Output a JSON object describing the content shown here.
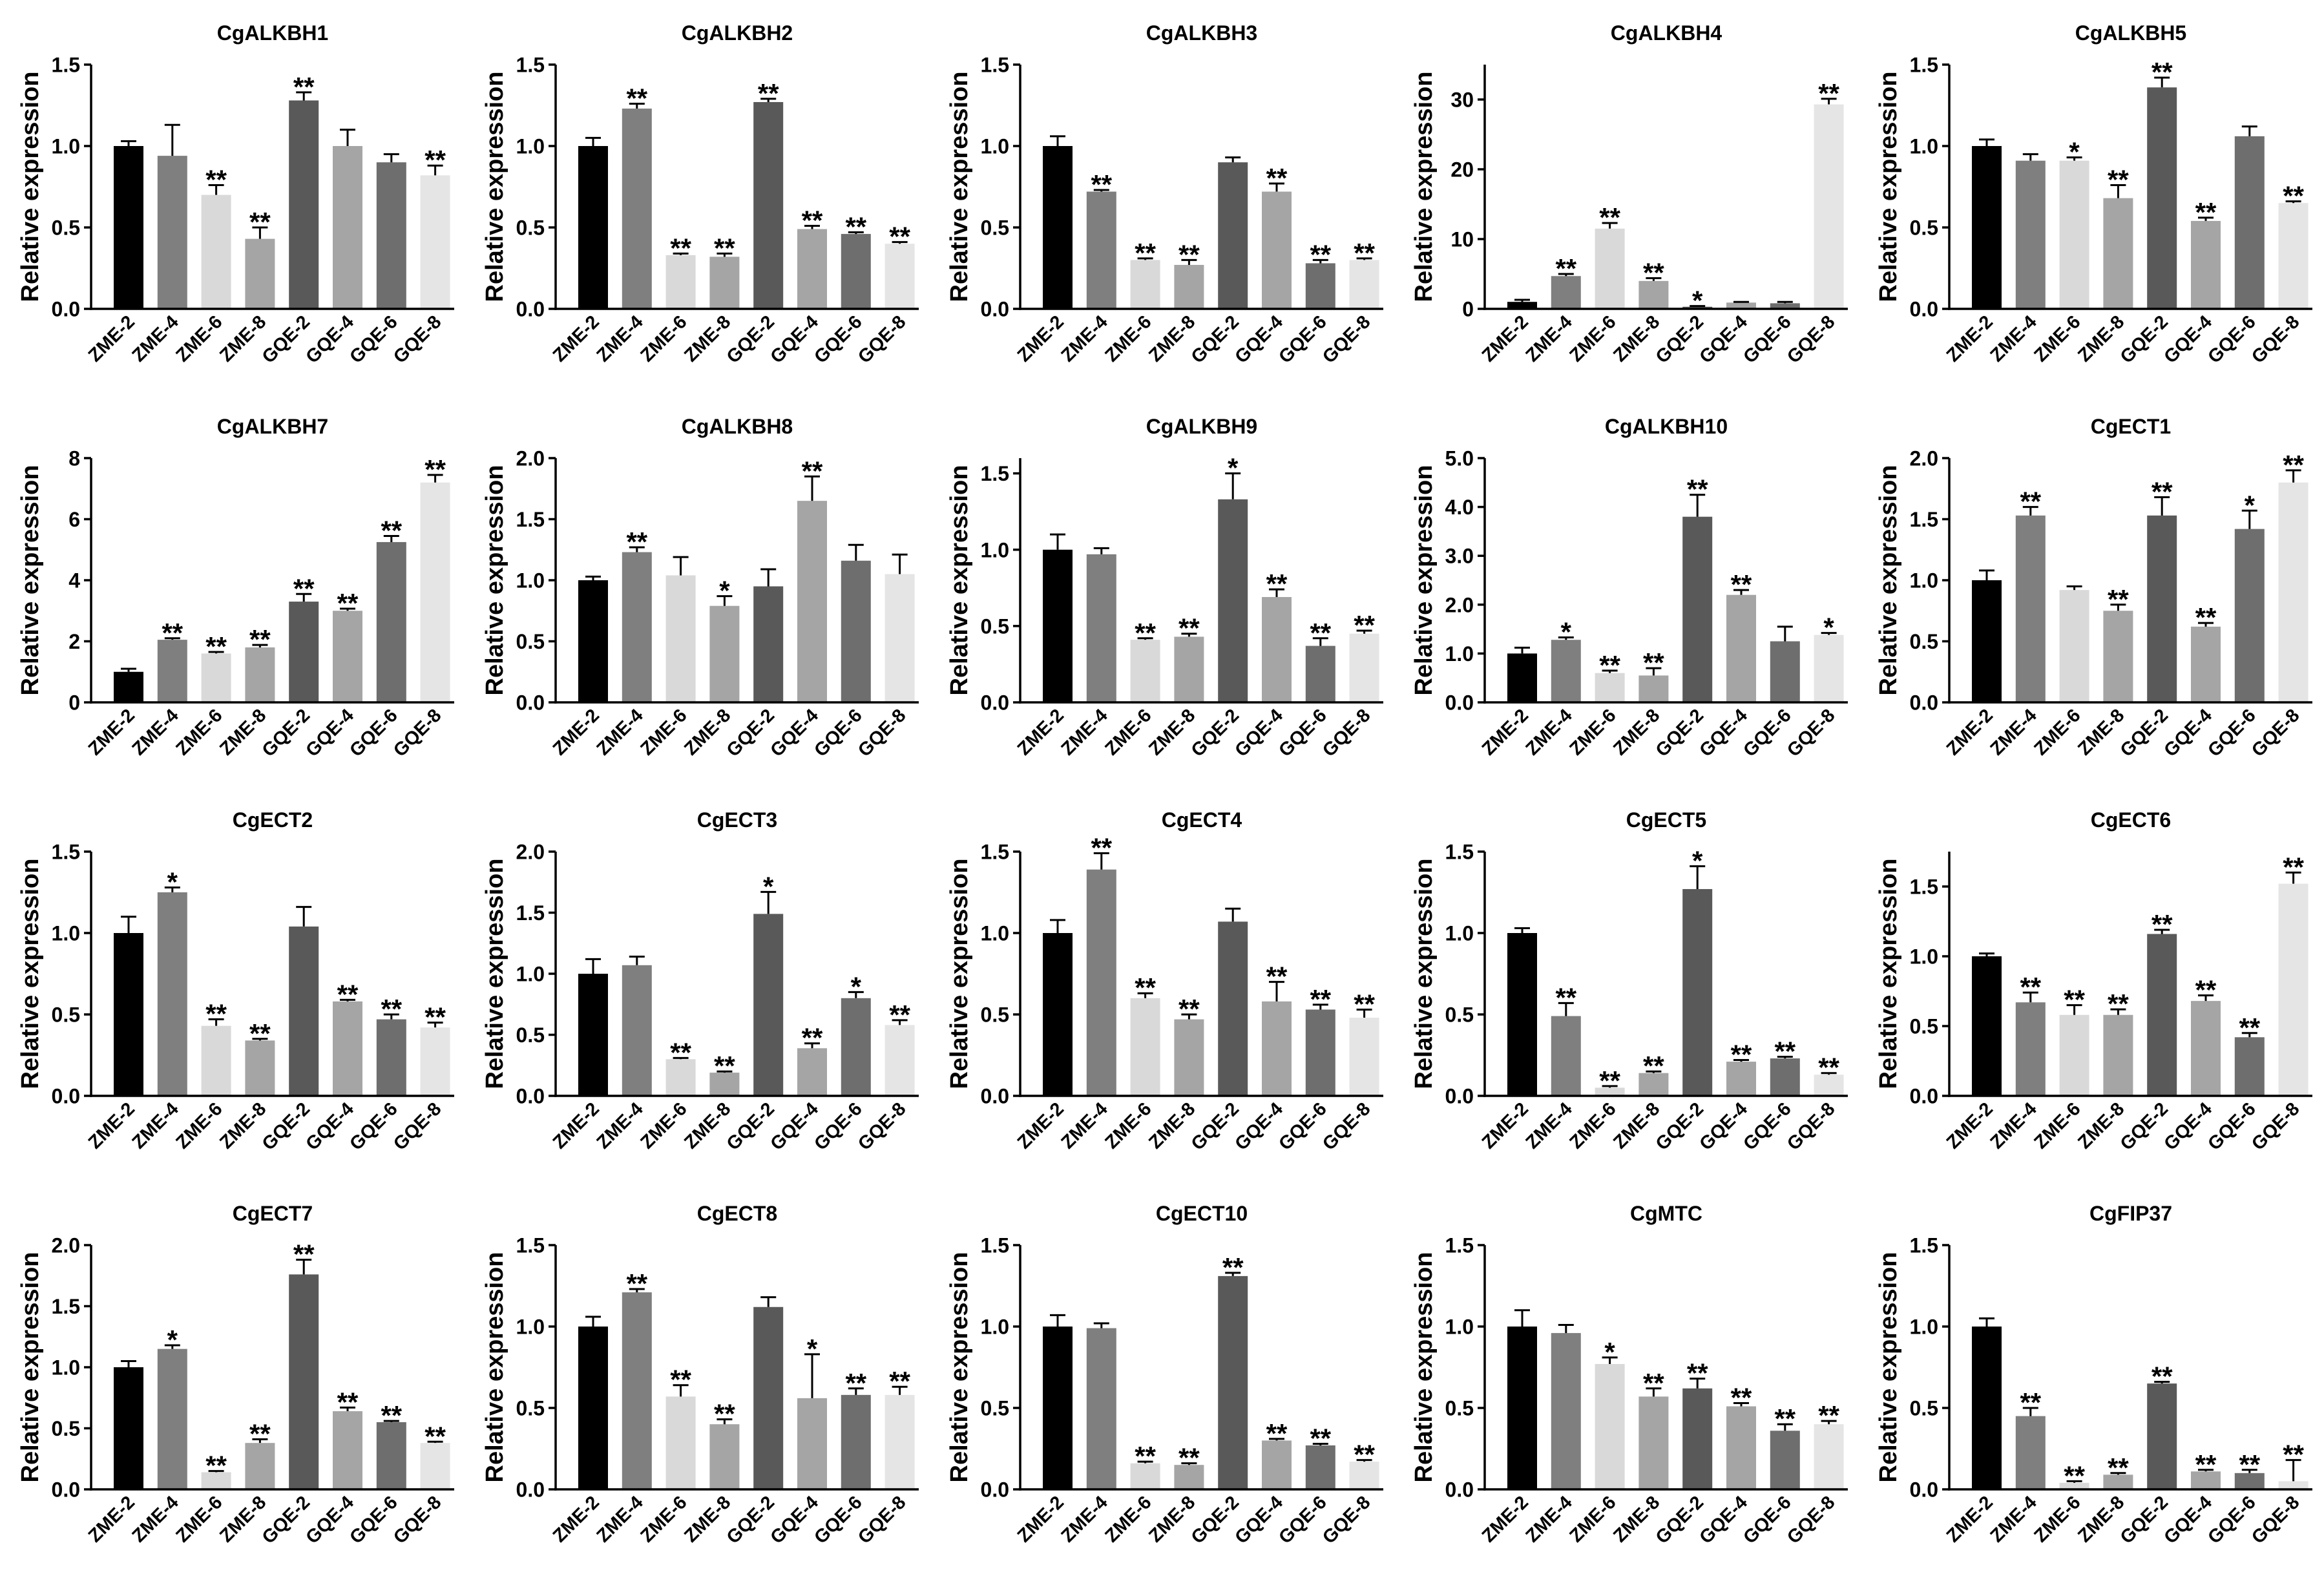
{
  "colors": {
    "bars": [
      "#000000",
      "#7f7f7f",
      "#d9d9d9",
      "#a5a5a5",
      "#595959",
      "#a5a5a5",
      "#6e6e6e",
      "#e5e5e5"
    ],
    "error_bar": "#000000",
    "axis": "#000000",
    "text": "#000000",
    "background": "#ffffff"
  },
  "chart_data": [
    {
      "type": "bar",
      "title": "CgALKBH1",
      "ylabel": "Relative expression",
      "categories": [
        "ZME-2",
        "ZME-4",
        "ZME-6",
        "ZME-8",
        "GQE-2",
        "GQE-4",
        "GQE-6",
        "GQE-8"
      ],
      "values": [
        1.0,
        0.94,
        0.7,
        0.43,
        1.28,
        1.0,
        0.9,
        0.82
      ],
      "errors": [
        0.03,
        0.19,
        0.06,
        0.07,
        0.05,
        0.1,
        0.05,
        0.06
      ],
      "significance": [
        null,
        null,
        "**",
        "**",
        "**",
        null,
        null,
        "**"
      ],
      "ylim": [
        0,
        1.5
      ],
      "yticks": [
        0,
        0.5,
        1,
        1.5
      ],
      "ytick_labels": [
        "0.0",
        "0.5",
        "1.0",
        "1.5"
      ]
    },
    {
      "type": "bar",
      "title": "CgALKBH2",
      "ylabel": "Relative expression",
      "categories": [
        "ZME-2",
        "ZME-4",
        "ZME-6",
        "ZME-8",
        "GQE-2",
        "GQE-4",
        "GQE-6",
        "GQE-8"
      ],
      "values": [
        1.0,
        1.23,
        0.33,
        0.32,
        1.27,
        0.49,
        0.46,
        0.4
      ],
      "errors": [
        0.05,
        0.03,
        0.01,
        0.02,
        0.02,
        0.02,
        0.01,
        0.01
      ],
      "significance": [
        null,
        "**",
        "**",
        "**",
        "**",
        "**",
        "**",
        "**"
      ],
      "ylim": [
        0,
        1.5
      ],
      "yticks": [
        0,
        0.5,
        1,
        1.5
      ],
      "ytick_labels": [
        "0.0",
        "0.5",
        "1.0",
        "1.5"
      ]
    },
    {
      "type": "bar",
      "title": "CgALKBH3",
      "ylabel": "Relative expression",
      "categories": [
        "ZME-2",
        "ZME-4",
        "ZME-6",
        "ZME-8",
        "GQE-2",
        "GQE-4",
        "GQE-6",
        "GQE-8"
      ],
      "values": [
        1.0,
        0.72,
        0.3,
        0.27,
        0.9,
        0.72,
        0.28,
        0.3
      ],
      "errors": [
        0.06,
        0.01,
        0.01,
        0.03,
        0.03,
        0.05,
        0.02,
        0.01
      ],
      "significance": [
        null,
        "**",
        "**",
        "**",
        null,
        "**",
        "**",
        "**"
      ],
      "ylim": [
        0,
        1.5
      ],
      "yticks": [
        0,
        0.5,
        1,
        1.5
      ],
      "ytick_labels": [
        "0.0",
        "0.5",
        "1.0",
        "1.5"
      ]
    },
    {
      "type": "bar",
      "title": "CgALKBH4",
      "ylabel": "Relative expression",
      "categories": [
        "ZME-2",
        "ZME-4",
        "ZME-6",
        "ZME-8",
        "GQE-2",
        "GQE-4",
        "GQE-6",
        "GQE-8"
      ],
      "values": [
        1.0,
        4.7,
        11.5,
        4.0,
        0.3,
        0.9,
        0.8,
        29.3
      ],
      "errors": [
        0.3,
        0.3,
        0.8,
        0.4,
        0.1,
        0.1,
        0.2,
        0.8
      ],
      "significance": [
        null,
        "**",
        "**",
        "**",
        "*",
        null,
        null,
        "**"
      ],
      "ylim": [
        0,
        35
      ],
      "yticks": [
        0,
        10,
        20,
        30
      ],
      "ytick_labels": [
        "0",
        "10",
        "20",
        "30"
      ]
    },
    {
      "type": "bar",
      "title": "CgALKBH5",
      "ylabel": "Relative expression",
      "categories": [
        "ZME-2",
        "ZME-4",
        "ZME-6",
        "ZME-8",
        "GQE-2",
        "GQE-4",
        "GQE-6",
        "GQE-8"
      ],
      "values": [
        1.0,
        0.91,
        0.91,
        0.68,
        1.36,
        0.54,
        1.06,
        0.65
      ],
      "errors": [
        0.04,
        0.04,
        0.02,
        0.08,
        0.06,
        0.02,
        0.06,
        0.01
      ],
      "significance": [
        null,
        null,
        "*",
        "**",
        "**",
        "**",
        null,
        "**"
      ],
      "ylim": [
        0,
        1.5
      ],
      "yticks": [
        0,
        0.5,
        1,
        1.5
      ],
      "ytick_labels": [
        "0.0",
        "0.5",
        "1.0",
        "1.5"
      ]
    },
    {
      "type": "bar",
      "title": "CgALKBH7",
      "ylabel": "Relative expression",
      "categories": [
        "ZME-2",
        "ZME-4",
        "ZME-6",
        "ZME-8",
        "GQE-2",
        "GQE-4",
        "GQE-6",
        "GQE-8"
      ],
      "values": [
        1.0,
        2.05,
        1.6,
        1.8,
        3.3,
        3.0,
        5.25,
        7.2
      ],
      "errors": [
        0.1,
        0.05,
        0.05,
        0.08,
        0.25,
        0.07,
        0.2,
        0.25
      ],
      "significance": [
        null,
        "**",
        "**",
        "**",
        "**",
        "**",
        "**",
        "**"
      ],
      "ylim": [
        0,
        8
      ],
      "yticks": [
        0,
        2,
        4,
        6,
        8
      ],
      "ytick_labels": [
        "0",
        "2",
        "4",
        "6",
        "8"
      ]
    },
    {
      "type": "bar",
      "title": "CgALKBH8",
      "ylabel": "Relative expression",
      "categories": [
        "ZME-2",
        "ZME-4",
        "ZME-6",
        "ZME-8",
        "GQE-2",
        "GQE-4",
        "GQE-6",
        "GQE-8"
      ],
      "values": [
        1.0,
        1.23,
        1.04,
        0.79,
        0.95,
        1.65,
        1.16,
        1.05
      ],
      "errors": [
        0.03,
        0.04,
        0.15,
        0.08,
        0.14,
        0.2,
        0.13,
        0.16
      ],
      "significance": [
        null,
        "**",
        null,
        "*",
        null,
        "**",
        null,
        null
      ],
      "ylim": [
        0,
        2
      ],
      "yticks": [
        0,
        0.5,
        1,
        1.5,
        2
      ],
      "ytick_labels": [
        "0.0",
        "0.5",
        "1.0",
        "1.5",
        "2.0"
      ]
    },
    {
      "type": "bar",
      "title": "CgALKBH9",
      "ylabel": "Relative expression",
      "categories": [
        "ZME-2",
        "ZME-4",
        "ZME-6",
        "ZME-8",
        "GQE-2",
        "GQE-4",
        "GQE-6",
        "GQE-8"
      ],
      "values": [
        1.0,
        0.97,
        0.41,
        0.43,
        1.33,
        0.69,
        0.37,
        0.45
      ],
      "errors": [
        0.1,
        0.04,
        0.01,
        0.02,
        0.17,
        0.05,
        0.05,
        0.02
      ],
      "significance": [
        null,
        null,
        "**",
        "**",
        "*",
        "**",
        "**",
        "**"
      ],
      "ylim": [
        0,
        1.6
      ],
      "yticks": [
        0,
        0.5,
        1,
        1.5
      ],
      "ytick_labels": [
        "0.0",
        "0.5",
        "1.0",
        "1.5"
      ]
    },
    {
      "type": "bar",
      "title": "CgALKBH10",
      "ylabel": "Relative expression",
      "categories": [
        "ZME-2",
        "ZME-4",
        "ZME-6",
        "ZME-8",
        "GQE-2",
        "GQE-4",
        "GQE-6",
        "GQE-8"
      ],
      "values": [
        1.0,
        1.28,
        0.6,
        0.55,
        3.8,
        2.2,
        1.25,
        1.38
      ],
      "errors": [
        0.12,
        0.05,
        0.05,
        0.15,
        0.45,
        0.1,
        0.3,
        0.04
      ],
      "significance": [
        null,
        "*",
        "**",
        "**",
        "**",
        "**",
        null,
        "*"
      ],
      "ylim": [
        0,
        5
      ],
      "yticks": [
        0,
        1,
        2,
        3,
        4,
        5
      ],
      "ytick_labels": [
        "0.0",
        "1.0",
        "2.0",
        "3.0",
        "4.0",
        "5.0"
      ]
    },
    {
      "type": "bar",
      "title": "CgECT1",
      "ylabel": "Relative expression",
      "categories": [
        "ZME-2",
        "ZME-4",
        "ZME-6",
        "ZME-8",
        "GQE-2",
        "GQE-4",
        "GQE-6",
        "GQE-8"
      ],
      "values": [
        1.0,
        1.53,
        0.92,
        0.75,
        1.53,
        0.62,
        1.42,
        1.8
      ],
      "errors": [
        0.08,
        0.07,
        0.03,
        0.05,
        0.15,
        0.03,
        0.15,
        0.1
      ],
      "significance": [
        null,
        "**",
        null,
        "**",
        "**",
        "**",
        "*",
        "**"
      ],
      "ylim": [
        0,
        2
      ],
      "yticks": [
        0,
        0.5,
        1,
        1.5,
        2
      ],
      "ytick_labels": [
        "0.0",
        "0.5",
        "1.0",
        "1.5",
        "2.0"
      ]
    },
    {
      "type": "bar",
      "title": "CgECT2",
      "ylabel": "Relative expression",
      "categories": [
        "ZME-2",
        "ZME-4",
        "ZME-6",
        "ZME-8",
        "GQE-2",
        "GQE-4",
        "GQE-6",
        "GQE-8"
      ],
      "values": [
        1.0,
        1.25,
        0.43,
        0.34,
        1.04,
        0.58,
        0.47,
        0.42
      ],
      "errors": [
        0.1,
        0.03,
        0.04,
        0.01,
        0.12,
        0.01,
        0.03,
        0.03
      ],
      "significance": [
        null,
        "*",
        "**",
        "**",
        null,
        "**",
        "**",
        "**"
      ],
      "ylim": [
        0,
        1.5
      ],
      "yticks": [
        0,
        0.5,
        1,
        1.5
      ],
      "ytick_labels": [
        "0.0",
        "0.5",
        "1.0",
        "1.5"
      ]
    },
    {
      "type": "bar",
      "title": "CgECT3",
      "ylabel": "Relative expression",
      "categories": [
        "ZME-2",
        "ZME-4",
        "ZME-6",
        "ZME-8",
        "GQE-2",
        "GQE-4",
        "GQE-6",
        "GQE-8"
      ],
      "values": [
        1.0,
        1.07,
        0.3,
        0.19,
        1.49,
        0.39,
        0.8,
        0.58
      ],
      "errors": [
        0.12,
        0.07,
        0.01,
        0.01,
        0.18,
        0.04,
        0.05,
        0.04
      ],
      "significance": [
        null,
        null,
        "**",
        "**",
        "*",
        "**",
        "*",
        "**"
      ],
      "ylim": [
        0,
        2
      ],
      "yticks": [
        0,
        0.5,
        1,
        1.5,
        2
      ],
      "ytick_labels": [
        "0.0",
        "0.5",
        "1.0",
        "1.5",
        "2.0"
      ]
    },
    {
      "type": "bar",
      "title": "CgECT4",
      "ylabel": "Relative expression",
      "categories": [
        "ZME-2",
        "ZME-4",
        "ZME-6",
        "ZME-8",
        "GQE-2",
        "GQE-4",
        "GQE-6",
        "GQE-8"
      ],
      "values": [
        1.0,
        1.39,
        0.6,
        0.47,
        1.07,
        0.58,
        0.53,
        0.48
      ],
      "errors": [
        0.08,
        0.1,
        0.03,
        0.03,
        0.08,
        0.12,
        0.03,
        0.05
      ],
      "significance": [
        null,
        "**",
        "**",
        "**",
        null,
        "**",
        "**",
        "**"
      ],
      "ylim": [
        0,
        1.5
      ],
      "yticks": [
        0,
        0.5,
        1,
        1.5
      ],
      "ytick_labels": [
        "0.0",
        "0.5",
        "1.0",
        "1.5"
      ]
    },
    {
      "type": "bar",
      "title": "CgECT5",
      "ylabel": "Relative expression",
      "categories": [
        "ZME-2",
        "ZME-4",
        "ZME-6",
        "ZME-8",
        "GQE-2",
        "GQE-4",
        "GQE-6",
        "GQE-8"
      ],
      "values": [
        1.0,
        0.49,
        0.05,
        0.14,
        1.27,
        0.21,
        0.23,
        0.13
      ],
      "errors": [
        0.03,
        0.08,
        0.01,
        0.01,
        0.14,
        0.01,
        0.01,
        0.01
      ],
      "significance": [
        null,
        "**",
        "**",
        "**",
        "*",
        "**",
        "**",
        "**"
      ],
      "ylim": [
        0,
        1.5
      ],
      "yticks": [
        0,
        0.5,
        1,
        1.5
      ],
      "ytick_labels": [
        "0.0",
        "0.5",
        "1.0",
        "1.5"
      ]
    },
    {
      "type": "bar",
      "title": "CgECT6",
      "ylabel": "Relative expression",
      "categories": [
        "ZME-2",
        "ZME-4",
        "ZME-6",
        "ZME-8",
        "GQE-2",
        "GQE-4",
        "GQE-6",
        "GQE-8"
      ],
      "values": [
        1.0,
        0.67,
        0.58,
        0.58,
        1.16,
        0.68,
        0.42,
        1.52
      ],
      "errors": [
        0.02,
        0.07,
        0.07,
        0.04,
        0.03,
        0.04,
        0.03,
        0.08
      ],
      "significance": [
        null,
        "**",
        "**",
        "**",
        "**",
        "**",
        "**",
        "**"
      ],
      "ylim": [
        0,
        1.75
      ],
      "yticks": [
        0,
        0.5,
        1,
        1.5
      ],
      "ytick_labels": [
        "0.0",
        "0.5",
        "1.0",
        "1.5"
      ]
    },
    {
      "type": "bar",
      "title": "CgECT7",
      "ylabel": "Relative expression",
      "categories": [
        "ZME-2",
        "ZME-4",
        "ZME-6",
        "ZME-8",
        "GQE-2",
        "GQE-4",
        "GQE-6",
        "GQE-8"
      ],
      "values": [
        1.0,
        1.15,
        0.14,
        0.38,
        1.76,
        0.64,
        0.55,
        0.38
      ],
      "errors": [
        0.05,
        0.03,
        0.01,
        0.03,
        0.12,
        0.03,
        0.01,
        0.01
      ],
      "significance": [
        null,
        "*",
        "**",
        "**",
        "**",
        "**",
        "**",
        "**"
      ],
      "ylim": [
        0,
        2
      ],
      "yticks": [
        0,
        0.5,
        1,
        1.5,
        2
      ],
      "ytick_labels": [
        "0.0",
        "0.5",
        "1.0",
        "1.5",
        "2.0"
      ]
    },
    {
      "type": "bar",
      "title": "CgECT8",
      "ylabel": "Relative expression",
      "categories": [
        "ZME-2",
        "ZME-4",
        "ZME-6",
        "ZME-8",
        "GQE-2",
        "GQE-4",
        "GQE-6",
        "GQE-8"
      ],
      "values": [
        1.0,
        1.21,
        0.57,
        0.4,
        1.12,
        0.56,
        0.58,
        0.58
      ],
      "errors": [
        0.06,
        0.02,
        0.07,
        0.03,
        0.06,
        0.27,
        0.04,
        0.05
      ],
      "significance": [
        null,
        "**",
        "**",
        "**",
        null,
        "*",
        "**",
        "**"
      ],
      "ylim": [
        0,
        1.5
      ],
      "yticks": [
        0,
        0.5,
        1,
        1.5
      ],
      "ytick_labels": [
        "0.0",
        "0.5",
        "1.0",
        "1.5"
      ]
    },
    {
      "type": "bar",
      "title": "CgECT10",
      "ylabel": "Relative expression",
      "categories": [
        "ZME-2",
        "ZME-4",
        "ZME-6",
        "ZME-8",
        "GQE-2",
        "GQE-4",
        "GQE-6",
        "GQE-8"
      ],
      "values": [
        1.0,
        0.99,
        0.16,
        0.15,
        1.31,
        0.3,
        0.27,
        0.17
      ],
      "errors": [
        0.07,
        0.03,
        0.01,
        0.01,
        0.02,
        0.01,
        0.01,
        0.01
      ],
      "significance": [
        null,
        null,
        "**",
        "**",
        "**",
        "**",
        "**",
        "**"
      ],
      "ylim": [
        0,
        1.5
      ],
      "yticks": [
        0,
        0.5,
        1,
        1.5
      ],
      "ytick_labels": [
        "0.0",
        "0.5",
        "1.0",
        "1.5"
      ]
    },
    {
      "type": "bar",
      "title": "CgMTC",
      "ylabel": "Relative expression",
      "categories": [
        "ZME-2",
        "ZME-4",
        "ZME-6",
        "ZME-8",
        "GQE-2",
        "GQE-4",
        "GQE-6",
        "GQE-8"
      ],
      "values": [
        1.0,
        0.96,
        0.77,
        0.57,
        0.62,
        0.51,
        0.36,
        0.4
      ],
      "errors": [
        0.1,
        0.05,
        0.04,
        0.05,
        0.06,
        0.02,
        0.04,
        0.02
      ],
      "significance": [
        null,
        null,
        "*",
        "**",
        "**",
        "**",
        "**",
        "**"
      ],
      "ylim": [
        0,
        1.5
      ],
      "yticks": [
        0,
        0.5,
        1,
        1.5
      ],
      "ytick_labels": [
        "0.0",
        "0.5",
        "1.0",
        "1.5"
      ]
    },
    {
      "type": "bar",
      "title": "CgFIP37",
      "ylabel": "Relative expression",
      "categories": [
        "ZME-2",
        "ZME-4",
        "ZME-6",
        "ZME-8",
        "GQE-2",
        "GQE-4",
        "GQE-6",
        "GQE-8"
      ],
      "values": [
        1.0,
        0.45,
        0.04,
        0.09,
        0.65,
        0.11,
        0.1,
        0.05
      ],
      "errors": [
        0.05,
        0.05,
        0.01,
        0.01,
        0.01,
        0.01,
        0.02,
        0.13
      ],
      "significance": [
        null,
        "**",
        "**",
        "**",
        "**",
        "**",
        "**",
        "**"
      ],
      "ylim": [
        0,
        1.5
      ],
      "yticks": [
        0,
        0.5,
        1,
        1.5
      ],
      "ytick_labels": [
        "0.0",
        "0.5",
        "1.0",
        "1.5"
      ]
    }
  ]
}
